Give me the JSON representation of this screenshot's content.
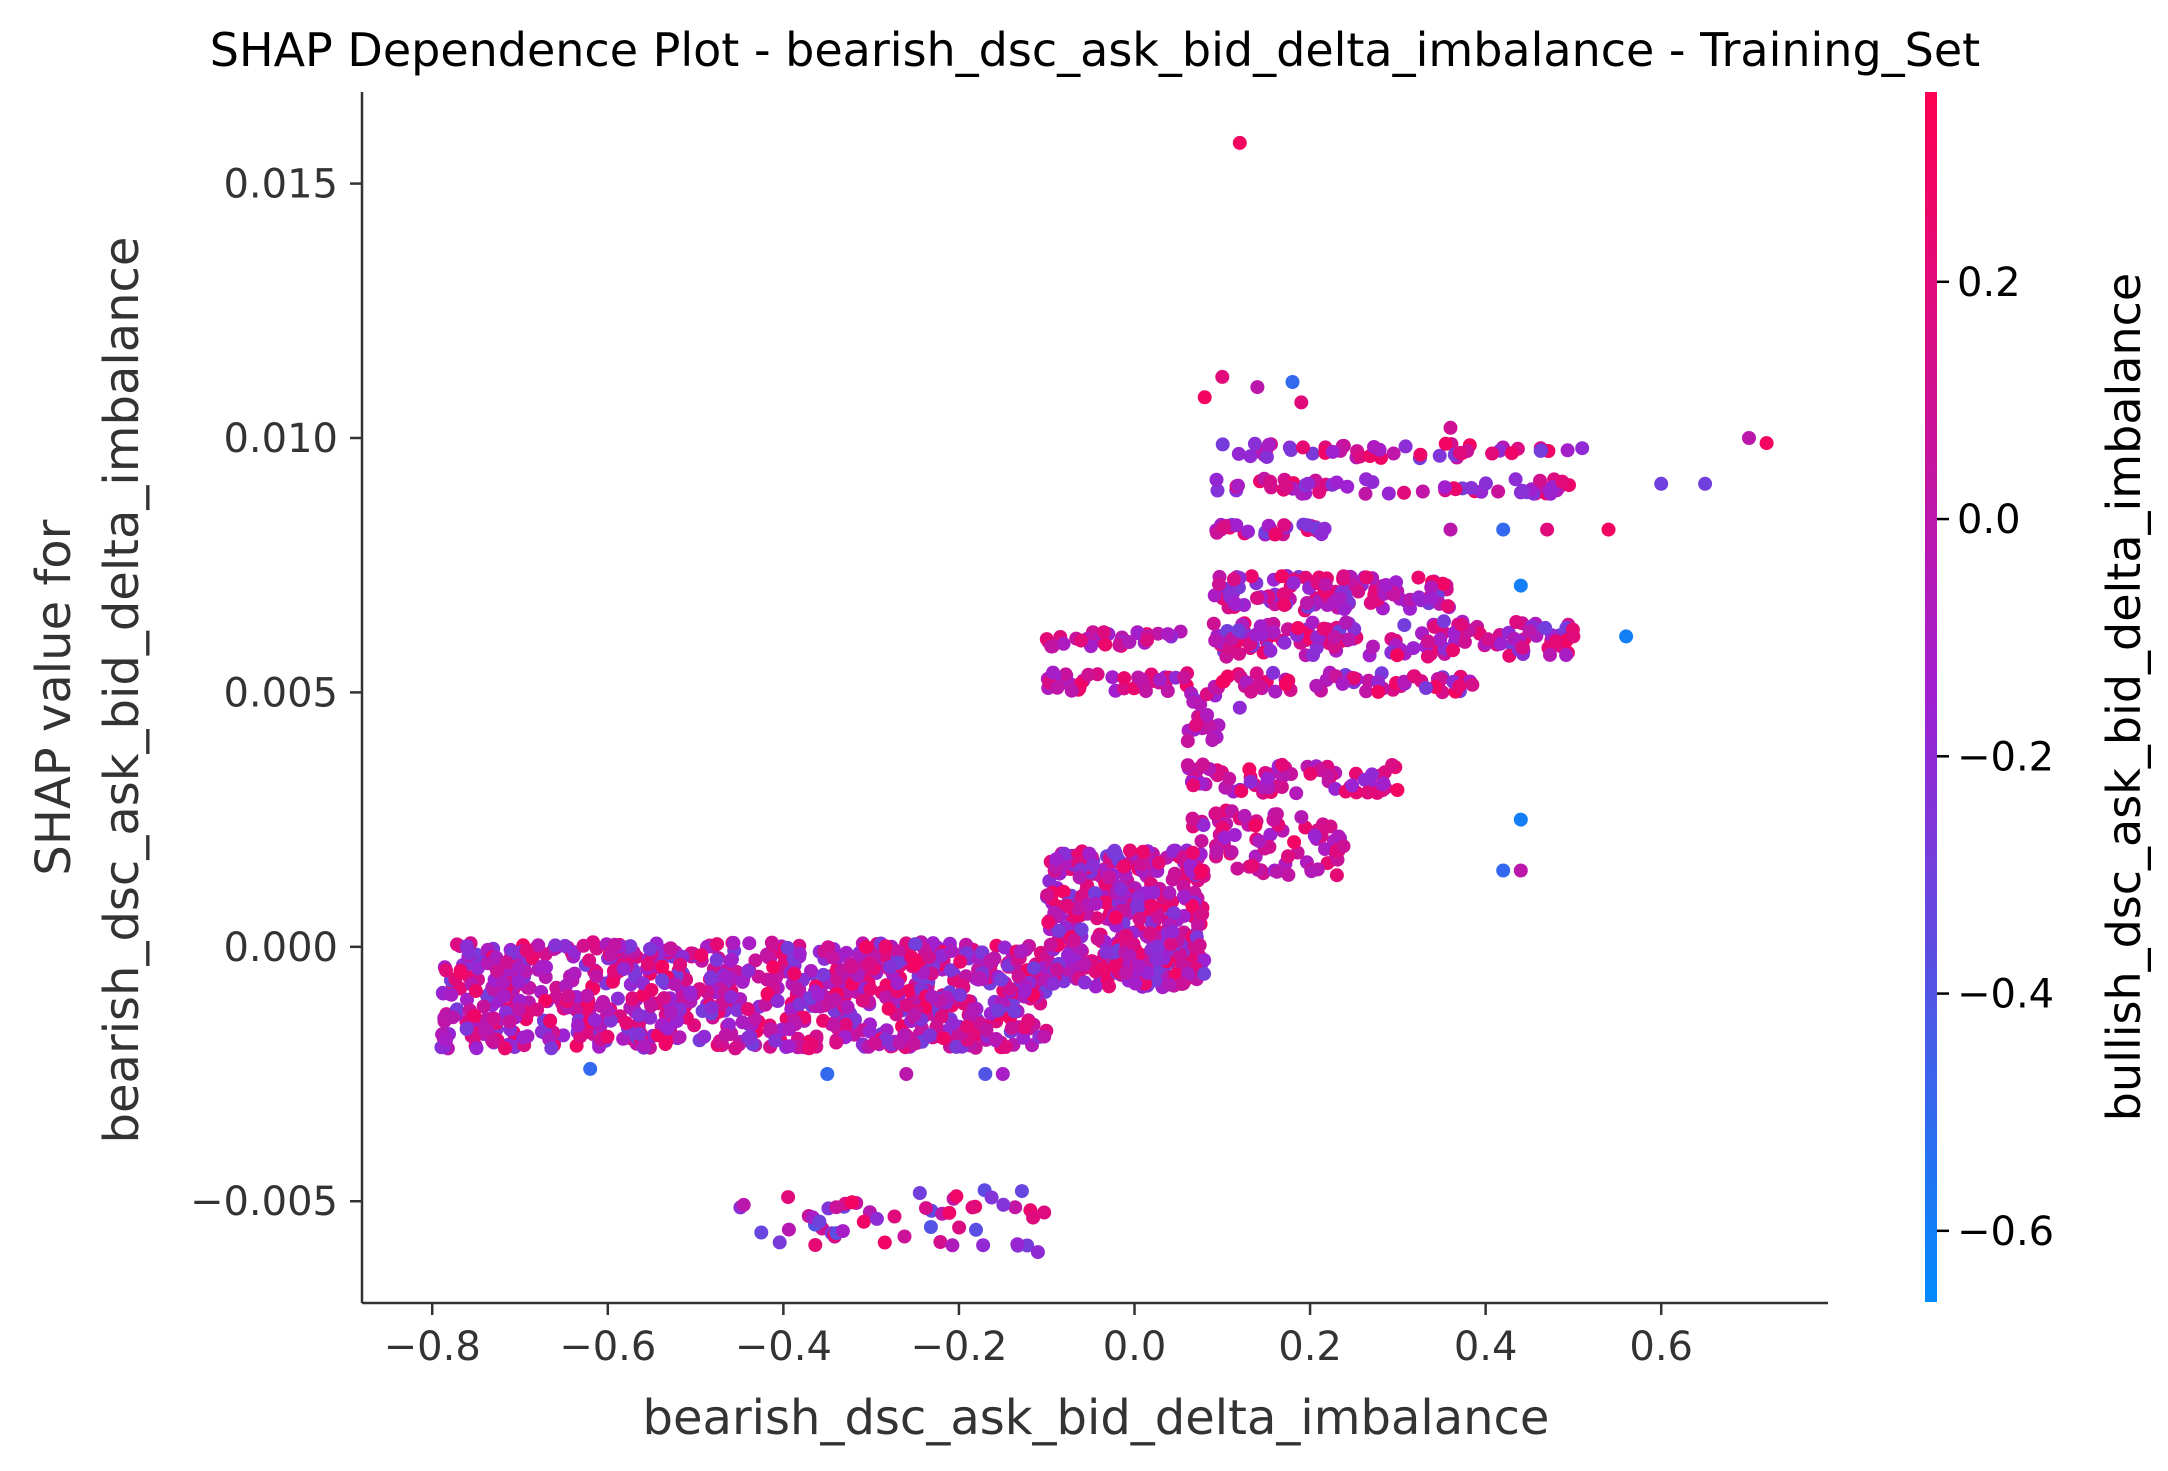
{
  "chart_data": {
    "type": "scatter",
    "title": "SHAP Dependence Plot - bearish_dsc_ask_bid_delta_imbalance - Training_Set",
    "xlabel": "bearish_dsc_ask_bid_delta_imbalance",
    "ylabel_lines": [
      "SHAP value for",
      "bearish_dsc_ask_bid_delta_imbalance"
    ],
    "xlim": [
      -0.88,
      0.79
    ],
    "ylim": [
      -0.007,
      0.0168
    ],
    "x_ticks": [
      -0.8,
      -0.6,
      -0.4,
      -0.2,
      0.0,
      0.2,
      0.4,
      0.6
    ],
    "x_tick_labels": [
      "−0.8",
      "−0.6",
      "−0.4",
      "−0.2",
      "0.0",
      "0.2",
      "0.4",
      "0.6"
    ],
    "y_ticks": [
      -0.005,
      0.0,
      0.005,
      0.01,
      0.015
    ],
    "y_tick_labels": [
      "−0.005",
      "0.000",
      "0.005",
      "0.010",
      "0.015"
    ],
    "grid": false,
    "colorbar": {
      "label": "bullish_dsc_ask_bid_delta_imbalance",
      "range": [
        -0.66,
        0.36
      ],
      "ticks": [
        0.2,
        0.0,
        -0.2,
        -0.4,
        -0.6
      ],
      "tick_labels": [
        "0.2",
        "0.0",
        "−0.2",
        "−0.4",
        "−0.6"
      ],
      "color_low": "#008bfb",
      "color_mid": "#a020d0",
      "color_high": "#ff0052"
    },
    "clusters": [
      {
        "name": "low",
        "x": [
          -0.79,
          -0.1
        ],
        "y": [
          -0.002,
          0.0001
        ],
        "n": 900,
        "c": [
          -0.3,
          0.3
        ]
      },
      {
        "name": "mid",
        "x": [
          -0.1,
          0.08
        ],
        "y": [
          -0.0008,
          0.0019
        ],
        "n": 420,
        "c": [
          -0.3,
          0.3
        ]
      },
      {
        "name": "neg",
        "x": [
          -0.45,
          -0.1
        ],
        "y": [
          -0.0059,
          -0.0047
        ],
        "n": 55,
        "c": [
          -0.4,
          0.3
        ]
      },
      {
        "name": "b0052",
        "x": [
          -0.1,
          0.06
        ],
        "y": [
          0.005,
          0.0054
        ],
        "n": 40,
        "c": [
          -0.2,
          0.3
        ]
      },
      {
        "name": "b0061",
        "x": [
          -0.1,
          0.06
        ],
        "y": [
          0.0059,
          0.0062
        ],
        "n": 35,
        "c": [
          -0.2,
          0.3
        ]
      },
      {
        "name": "b0020",
        "x": [
          0.06,
          0.24
        ],
        "y": [
          0.0014,
          0.0027
        ],
        "n": 80,
        "c": [
          -0.2,
          0.3
        ]
      },
      {
        "name": "b0032",
        "x": [
          0.06,
          0.3
        ],
        "y": [
          0.003,
          0.0036
        ],
        "n": 70,
        "c": [
          -0.2,
          0.3
        ]
      },
      {
        "name": "b0047",
        "x": [
          0.06,
          0.1
        ],
        "y": [
          0.004,
          0.005
        ],
        "n": 20,
        "c": [
          -0.3,
          0.2
        ]
      },
      {
        "name": "b0052b",
        "x": [
          0.09,
          0.4
        ],
        "y": [
          0.005,
          0.0054
        ],
        "n": 60,
        "c": [
          -0.3,
          0.3
        ]
      },
      {
        "name": "b0062",
        "x": [
          0.09,
          0.5
        ],
        "y": [
          0.0057,
          0.0064
        ],
        "n": 160,
        "c": [
          -0.3,
          0.3
        ]
      },
      {
        "name": "b0070",
        "x": [
          0.09,
          0.36
        ],
        "y": [
          0.0066,
          0.0073
        ],
        "n": 120,
        "c": [
          -0.3,
          0.3
        ]
      },
      {
        "name": "b0082",
        "x": [
          0.09,
          0.22
        ],
        "y": [
          0.0081,
          0.0083
        ],
        "n": 30,
        "c": [
          -0.3,
          0.3
        ]
      },
      {
        "name": "b0090",
        "x": [
          0.09,
          0.5
        ],
        "y": [
          0.0089,
          0.0092
        ],
        "n": 60,
        "c": [
          -0.3,
          0.3
        ]
      },
      {
        "name": "b0098",
        "x": [
          0.09,
          0.5
        ],
        "y": [
          0.0096,
          0.0099
        ],
        "n": 50,
        "c": [
          -0.3,
          0.3
        ]
      }
    ],
    "points": [
      {
        "x": 0.12,
        "y": 0.0158,
        "c": 0.3
      },
      {
        "x": 0.1,
        "y": 0.0112,
        "c": 0.2
      },
      {
        "x": 0.18,
        "y": 0.0111,
        "c": -0.5
      },
      {
        "x": 0.14,
        "y": 0.011,
        "c": 0.0
      },
      {
        "x": 0.08,
        "y": 0.0108,
        "c": 0.3
      },
      {
        "x": 0.19,
        "y": 0.0107,
        "c": 0.2
      },
      {
        "x": 0.36,
        "y": 0.0102,
        "c": 0.1
      },
      {
        "x": 0.7,
        "y": 0.01,
        "c": 0.0
      },
      {
        "x": 0.72,
        "y": 0.0099,
        "c": 0.3
      },
      {
        "x": 0.51,
        "y": 0.0098,
        "c": -0.2
      },
      {
        "x": 0.6,
        "y": 0.0091,
        "c": -0.3
      },
      {
        "x": 0.65,
        "y": 0.0091,
        "c": -0.3
      },
      {
        "x": 0.54,
        "y": 0.0082,
        "c": 0.3
      },
      {
        "x": 0.42,
        "y": 0.0082,
        "c": -0.5
      },
      {
        "x": 0.47,
        "y": 0.0082,
        "c": 0.2
      },
      {
        "x": 0.36,
        "y": 0.0082,
        "c": 0.0
      },
      {
        "x": 0.44,
        "y": 0.0071,
        "c": -0.6
      },
      {
        "x": 0.56,
        "y": 0.0061,
        "c": -0.6
      },
      {
        "x": 0.5,
        "y": 0.0061,
        "c": 0.2
      },
      {
        "x": 0.45,
        "y": 0.0062,
        "c": 0.0
      },
      {
        "x": 0.12,
        "y": 0.0047,
        "c": -0.2
      },
      {
        "x": 0.44,
        "y": 0.0025,
        "c": -0.6
      },
      {
        "x": 0.42,
        "y": 0.0015,
        "c": -0.5
      },
      {
        "x": 0.44,
        "y": 0.0015,
        "c": 0.0
      },
      {
        "x": -0.62,
        "y": -0.0024,
        "c": -0.5
      },
      {
        "x": -0.35,
        "y": -0.0025,
        "c": -0.5
      },
      {
        "x": -0.26,
        "y": -0.0025,
        "c": 0.0
      },
      {
        "x": -0.17,
        "y": -0.0025,
        "c": -0.4
      },
      {
        "x": -0.15,
        "y": -0.0025,
        "c": -0.1
      },
      {
        "x": -0.11,
        "y": -0.006,
        "c": -0.2
      }
    ]
  }
}
